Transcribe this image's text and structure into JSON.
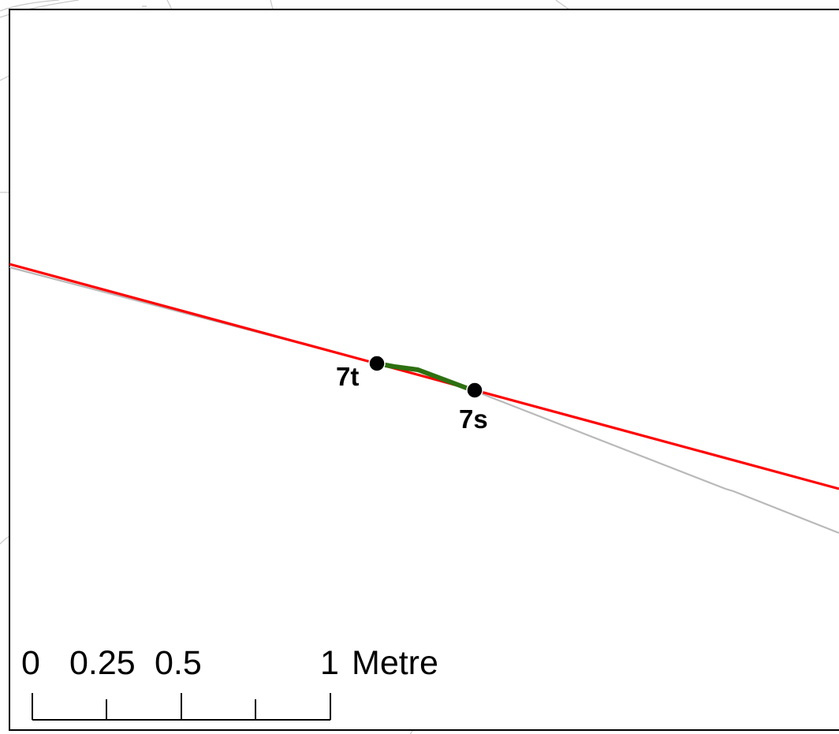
{
  "map": {
    "colors": {
      "background": "#ffffff",
      "frame": "#000000",
      "basemap_lines": "#b9b9b9",
      "red_line": "#ff0000",
      "green_path": "#2d7010",
      "points": "#000000"
    },
    "points": [
      {
        "id": "7t",
        "label": "7t"
      },
      {
        "id": "7s",
        "label": "7s"
      }
    ]
  },
  "scale_bar": {
    "tick_labels": [
      "0",
      "0.25",
      "0.5",
      "1"
    ],
    "unit": "Metre",
    "values": [
      0,
      0.25,
      0.5,
      0.75,
      1
    ]
  }
}
